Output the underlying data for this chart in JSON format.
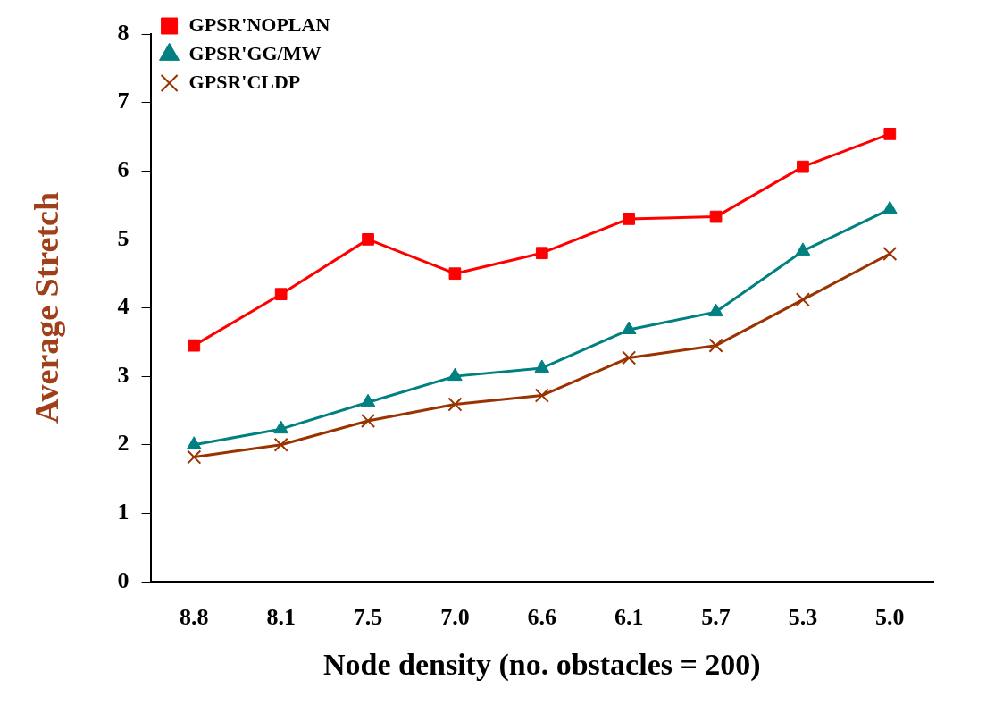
{
  "chart_data": {
    "type": "line",
    "xlabel": "Node density (no. obstacles = 200)",
    "ylabel": "Average Stretch",
    "categories": [
      "8.8",
      "8.1",
      "7.5",
      "7.0",
      "6.6",
      "6.1",
      "5.7",
      "5.3",
      "5.0"
    ],
    "ylim": [
      0,
      8
    ],
    "yticks": [
      0,
      1,
      2,
      3,
      4,
      5,
      6,
      7,
      8
    ],
    "grid": false,
    "legend": "top left",
    "line_style": "solid",
    "series": [
      {
        "name": "GPSR'NOPLAN",
        "color": "#ff0000",
        "marker": "square",
        "values": [
          3.45,
          4.2,
          5.0,
          4.5,
          4.8,
          5.3,
          5.33,
          6.06,
          6.54
        ]
      },
      {
        "name": "GPSR'GG/MW",
        "color": "#008080",
        "marker": "triangle",
        "values": [
          2.0,
          2.23,
          2.62,
          3.0,
          3.12,
          3.68,
          3.94,
          4.83,
          5.44
        ]
      },
      {
        "name": "GPSR'CLDP",
        "color": "#993300",
        "marker": "cross",
        "values": [
          1.82,
          2.0,
          2.35,
          2.59,
          2.72,
          3.27,
          3.45,
          4.12,
          4.79
        ]
      }
    ]
  }
}
